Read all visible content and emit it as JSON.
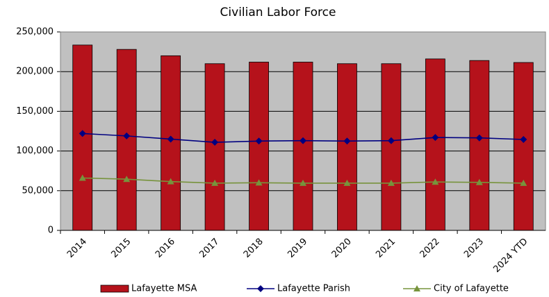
{
  "chart_data": {
    "type": "bar",
    "title": "Civilian Labor Force",
    "categories": [
      "2014",
      "2015",
      "2016",
      "2017",
      "2018",
      "2019",
      "2020",
      "2021",
      "2022",
      "2023",
      "2024 YTD"
    ],
    "series": [
      {
        "name": "Lafayette MSA",
        "type": "bar",
        "color": "#b5121b",
        "values": [
          233500,
          228000,
          220000,
          210000,
          212000,
          212000,
          210000,
          210000,
          216000,
          214000,
          211500
        ]
      },
      {
        "name": "Lafayette Parish",
        "type": "line",
        "marker": "diamond",
        "color": "#000080",
        "values": [
          122000,
          119000,
          115000,
          111000,
          112500,
          113000,
          112500,
          113000,
          117000,
          116500,
          114500
        ]
      },
      {
        "name": "City of Lafayette",
        "type": "line",
        "marker": "triangle",
        "color": "#77933c",
        "values": [
          66000,
          64500,
          61500,
          59500,
          60000,
          59500,
          59500,
          59500,
          61000,
          60500,
          59500
        ]
      }
    ],
    "ylim": [
      0,
      250000
    ],
    "yticks": [
      0,
      {
        "value": 50000,
        "label": "50,000"
      },
      {
        "value": 100000,
        "label": "100,000"
      },
      {
        "value": 150000,
        "label": "150,000"
      },
      {
        "value": 200000,
        "label": "200,000"
      },
      {
        "value": 250000,
        "label": "250,000"
      }
    ],
    "grid": true,
    "legend": "bottom"
  }
}
